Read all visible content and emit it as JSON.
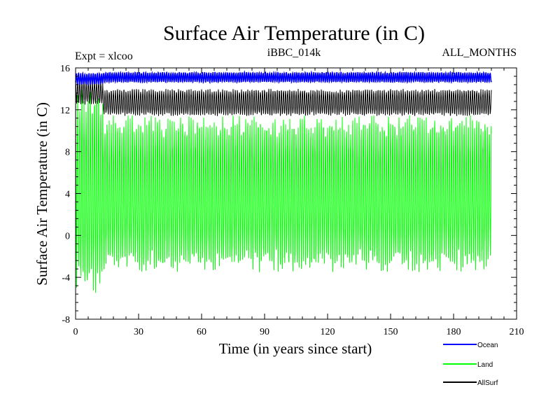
{
  "chart_data": {
    "type": "line",
    "title": "Surface Air Temperature (in C)",
    "subtitle_left": "Expt = xlcoo",
    "subtitle_center": "iBBC_014k",
    "subtitle_right": "ALL_MONTHS",
    "xlabel": "Time (in years since start)",
    "ylabel": "Surface Air Temperature (in C)",
    "xlim": [
      0,
      210
    ],
    "ylim": [
      -8,
      16
    ],
    "x_ticks": [
      0,
      30,
      60,
      90,
      120,
      150,
      180,
      210
    ],
    "y_ticks": [
      -8,
      -4,
      0,
      4,
      8,
      12,
      16
    ],
    "x_tick_labels": [
      "0",
      "30",
      "60",
      "90",
      "120",
      "150",
      "180",
      "210"
    ],
    "y_tick_labels": [
      "-8",
      "-4",
      "0",
      "4",
      "8",
      "12",
      "16"
    ],
    "legend_position": "bottom-right, below plot",
    "x_end": 198,
    "spinup_end_year": 13,
    "series": [
      {
        "name": "Ocean",
        "color": "#0000ff",
        "description": "monthly mean, seasonal cycle",
        "min_value": 14.6,
        "max_value": 15.6,
        "spinup_min": 14.4,
        "spinup_max": 15.5
      },
      {
        "name": "Land",
        "color": "#00ff00",
        "description": "monthly mean, seasonal cycle",
        "min_value": -3.5,
        "max_value": 11.5,
        "spinup_min": -5.5,
        "spinup_max": 14.0
      },
      {
        "name": "AllSurf",
        "color": "#000000",
        "description": "monthly mean, seasonal cycle",
        "min_value": 11.4,
        "max_value": 14.0,
        "spinup_min": 12.5,
        "spinup_max": 14.8
      }
    ]
  }
}
